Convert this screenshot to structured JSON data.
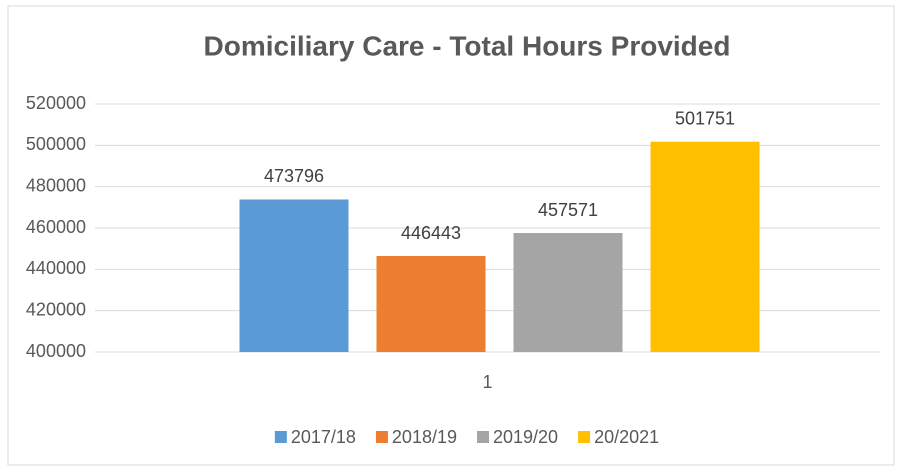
{
  "chart_data": {
    "type": "bar",
    "title": "Domiciliary Care - Total Hours Provided",
    "categories": [
      "1"
    ],
    "series": [
      {
        "name": "2017/18",
        "color": "#5b9bd5",
        "values": [
          473796
        ]
      },
      {
        "name": "2018/19",
        "color": "#ed7d31",
        "values": [
          446443
        ]
      },
      {
        "name": "2019/20",
        "color": "#a5a5a5",
        "values": [
          457571
        ]
      },
      {
        "name": "20/2021",
        "color": "#ffc000",
        "values": [
          501751
        ]
      }
    ],
    "ylim": [
      400000,
      520000
    ],
    "yticks": [
      400000,
      420000,
      440000,
      460000,
      480000,
      500000,
      520000
    ],
    "grid": true,
    "legend": "bottom"
  }
}
